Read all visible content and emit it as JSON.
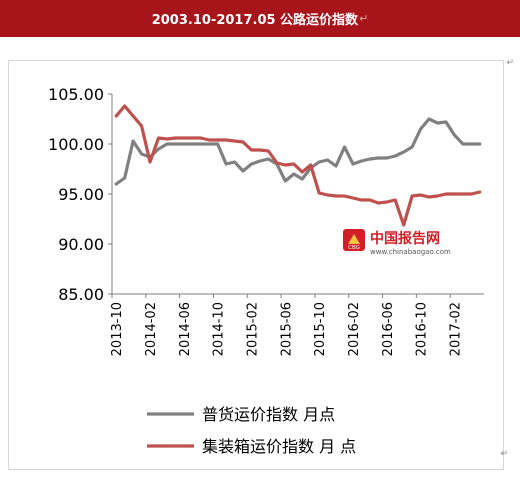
{
  "header": {
    "title": "2003.10-2017.05 公路运价指数",
    "trailing_mark": "↵"
  },
  "paragraph_marks": [
    "↵",
    "↵"
  ],
  "watermark": {
    "brand": "中国报告网",
    "badge": "CBG",
    "url": "www.chinabaogao.com"
  },
  "colors": {
    "header_bg": "#a7151b",
    "general_cargo": "#808080",
    "container": "#c0504d",
    "axis": "#7f7f7f",
    "brand_red": "#d01f26"
  },
  "chart_data": {
    "type": "line",
    "title": "2003.10-2017.05 公路运价指数",
    "xlabel": "",
    "ylabel": "",
    "ylim": [
      85,
      105
    ],
    "yticks": [
      85,
      90,
      95,
      100,
      105
    ],
    "ytick_labels": [
      "85.00",
      "90.00",
      "95.00",
      "100.00",
      "105.00"
    ],
    "grid": false,
    "legend_position": "bottom",
    "x_tick_labels": [
      "2013-10",
      "2014-02",
      "2014-06",
      "2014-10",
      "2015-02",
      "2015-06",
      "2015-10",
      "2016-02",
      "2016-06",
      "2016-10",
      "2017-02"
    ],
    "x": [
      "2013-10",
      "2013-11",
      "2013-12",
      "2014-01",
      "2014-02",
      "2014-03",
      "2014-04",
      "2014-05",
      "2014-06",
      "2014-07",
      "2014-08",
      "2014-09",
      "2014-10",
      "2014-11",
      "2014-12",
      "2015-01",
      "2015-02",
      "2015-03",
      "2015-04",
      "2015-05",
      "2015-06",
      "2015-07",
      "2015-08",
      "2015-09",
      "2015-10",
      "2015-11",
      "2015-12",
      "2016-01",
      "2016-02",
      "2016-03",
      "2016-04",
      "2016-05",
      "2016-06",
      "2016-07",
      "2016-08",
      "2016-09",
      "2016-10",
      "2016-11",
      "2016-12",
      "2017-01",
      "2017-02",
      "2017-03",
      "2017-04",
      "2017-05"
    ],
    "series": [
      {
        "name": "普货运价指数 月点",
        "color": "#808080",
        "values": [
          96.0,
          96.6,
          100.3,
          99.0,
          98.7,
          99.5,
          100.0,
          100.0,
          100.0,
          100.0,
          100.0,
          100.0,
          100.0,
          98.0,
          98.2,
          97.3,
          98.0,
          98.3,
          98.5,
          98.0,
          96.3,
          97.0,
          96.5,
          97.6,
          98.2,
          98.4,
          97.8,
          99.7,
          98.0,
          98.3,
          98.5,
          98.6,
          98.6,
          98.8,
          99.2,
          99.7,
          101.5,
          102.5,
          102.1,
          102.2,
          100.9,
          100.0,
          100.0,
          100.0
        ]
      },
      {
        "name": "集装箱运价指数 月 点",
        "color": "#c0504d",
        "values": [
          102.8,
          103.8,
          102.8,
          101.8,
          98.2,
          100.6,
          100.5,
          100.6,
          100.6,
          100.6,
          100.6,
          100.4,
          100.4,
          100.4,
          100.3,
          100.2,
          99.4,
          99.4,
          99.3,
          98.1,
          97.9,
          98.0,
          97.2,
          97.9,
          95.1,
          94.9,
          94.8,
          94.8,
          94.6,
          94.4,
          94.4,
          94.1,
          94.2,
          94.4,
          91.9,
          94.8,
          94.9,
          94.7,
          94.8,
          95.0,
          95.0,
          95.0,
          95.0,
          95.2
        ]
      }
    ]
  }
}
